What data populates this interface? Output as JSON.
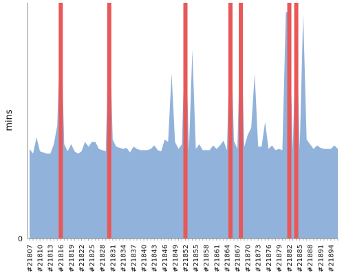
{
  "chart_data": {
    "type": "area",
    "ylabel": "mins",
    "xlabel": "",
    "title": "",
    "ylim": [
      0,
      100
    ],
    "y_ticks": [
      0
    ],
    "grid": false,
    "legend": "none",
    "colors": {
      "area": "#91b2da",
      "failure": "#e85858",
      "axis": "#555555"
    },
    "x": [
      "#21807",
      "#21808",
      "#21809",
      "#21810",
      "#21811",
      "#21812",
      "#21813",
      "#21814",
      "#21815",
      "#21816",
      "#21817",
      "#21818",
      "#21819",
      "#21820",
      "#21821",
      "#21822",
      "#21823",
      "#21824",
      "#21825",
      "#21826",
      "#21827",
      "#21828",
      "#21829",
      "#21830",
      "#21831",
      "#21832",
      "#21833",
      "#21834",
      "#21835",
      "#21836",
      "#21837",
      "#21838",
      "#21839",
      "#21840",
      "#21841",
      "#21842",
      "#21843",
      "#21844",
      "#21845",
      "#21846",
      "#21847",
      "#21848",
      "#21849",
      "#21850",
      "#21851",
      "#21852",
      "#21853",
      "#21854",
      "#21855",
      "#21856",
      "#21857",
      "#21858",
      "#21859",
      "#21860",
      "#21861",
      "#21862",
      "#21863",
      "#21864",
      "#21865",
      "#21866",
      "#21867",
      "#21868",
      "#21869",
      "#21870",
      "#21871",
      "#21872",
      "#21873",
      "#21874",
      "#21875",
      "#21876",
      "#21877",
      "#21878",
      "#21879",
      "#21880",
      "#21881",
      "#21882",
      "#21883",
      "#21884",
      "#21885",
      "#21886",
      "#21887",
      "#21888",
      "#21889",
      "#21890",
      "#21891",
      "#21892",
      "#21893",
      "#21894",
      "#21895",
      "#21896"
    ],
    "x_tick_labels": [
      "#21807",
      "#21810",
      "#21813",
      "#21816",
      "#21819",
      "#21822",
      "#21825",
      "#21828",
      "#21831",
      "#21834",
      "#21837",
      "#21840",
      "#21843",
      "#21846",
      "#21849",
      "#21852",
      "#21855",
      "#21858",
      "#21861",
      "#21864",
      "#21867",
      "#21870",
      "#21873",
      "#21876",
      "#21879",
      "#21882",
      "#21885",
      "#21888",
      "#21891",
      "#21894"
    ],
    "values": [
      38,
      36,
      43,
      37,
      36.5,
      36,
      36,
      40,
      48,
      96,
      40,
      37,
      40,
      37,
      36,
      37,
      41,
      39,
      41,
      41,
      38,
      37.5,
      37,
      96,
      42,
      39,
      38.5,
      38,
      38.5,
      36.5,
      39,
      38,
      37.5,
      37.5,
      37.5,
      38,
      39.5,
      37.5,
      37,
      42,
      41,
      70,
      41,
      38,
      40,
      96,
      37,
      80,
      38,
      40,
      37.5,
      37.5,
      37.5,
      39.5,
      38,
      39.5,
      41.5,
      37.5,
      96,
      41.5,
      38,
      96,
      39,
      44,
      47,
      70,
      39,
      39,
      49.5,
      38,
      39.5,
      37.5,
      38,
      37.5,
      96,
      96,
      37.5,
      96,
      38,
      95.5,
      42,
      40,
      38,
      39.5,
      38.5,
      38,
      38,
      38,
      39.5,
      38
    ],
    "failed_builds": [
      "#21816",
      "#21830",
      "#21852",
      "#21865",
      "#21868",
      "#21882",
      "#21884"
    ]
  }
}
